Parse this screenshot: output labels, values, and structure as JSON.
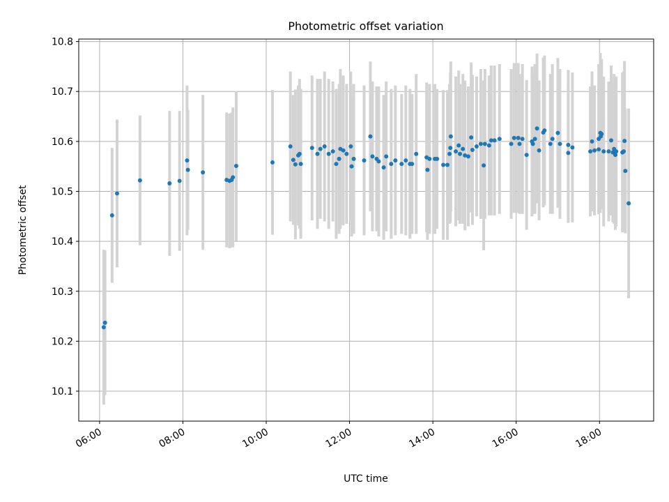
{
  "chart_data": {
    "type": "scatter",
    "title": "Photometric offset variation",
    "xlabel": "UTC time",
    "ylabel": "Photometric offset",
    "grid": true,
    "xlim_hours": [
      5.5,
      19.3
    ],
    "ylim": [
      10.04,
      10.805
    ],
    "x_ticks": [
      {
        "hour": 6,
        "label": "06:00"
      },
      {
        "hour": 8,
        "label": "08:00"
      },
      {
        "hour": 10,
        "label": "10:00"
      },
      {
        "hour": 12,
        "label": "12:00"
      },
      {
        "hour": 14,
        "label": "14:00"
      },
      {
        "hour": 16,
        "label": "16:00"
      },
      {
        "hour": 18,
        "label": "18:00"
      }
    ],
    "y_ticks": [
      {
        "value": 10.1,
        "label": "10.1"
      },
      {
        "value": 10.2,
        "label": "10.2"
      },
      {
        "value": 10.3,
        "label": "10.3"
      },
      {
        "value": 10.4,
        "label": "10.4"
      },
      {
        "value": 10.5,
        "label": "10.5"
      },
      {
        "value": 10.6,
        "label": "10.6"
      },
      {
        "value": 10.7,
        "label": "10.7"
      },
      {
        "value": 10.8,
        "label": "10.8"
      }
    ],
    "colors": {
      "marker": "#1f77b4",
      "errorbar": "#d3d3d3",
      "grid": "#b0b0b0"
    },
    "series": [
      {
        "points": [
          [
            6.1,
            10.228,
            0.155
          ],
          [
            6.13,
            10.237,
            0.145
          ],
          [
            6.3,
            10.452,
            0.135
          ],
          [
            6.42,
            10.496,
            0.148
          ],
          [
            6.97,
            10.522,
            0.13
          ],
          [
            7.68,
            10.516,
            0.145
          ],
          [
            7.92,
            10.521,
            0.14
          ],
          [
            8.1,
            10.562,
            0.15
          ],
          [
            8.12,
            10.543,
            0.12
          ],
          [
            8.48,
            10.538,
            0.155
          ],
          [
            9.05,
            10.523,
            0.135
          ],
          [
            9.12,
            10.521,
            0.135
          ],
          [
            9.17,
            10.523,
            0.135
          ],
          [
            9.2,
            10.528,
            0.14
          ],
          [
            9.28,
            10.551,
            0.15
          ],
          [
            10.15,
            10.558,
            0.145
          ],
          [
            10.58,
            10.59,
            0.15
          ],
          [
            10.65,
            10.563,
            0.13
          ],
          [
            10.7,
            10.554,
            0.15
          ],
          [
            10.77,
            10.572,
            0.14
          ],
          [
            10.8,
            10.575,
            0.15
          ],
          [
            10.83,
            10.555,
            0.15
          ],
          [
            11.1,
            10.587,
            0.145
          ],
          [
            11.23,
            10.575,
            0.15
          ],
          [
            11.3,
            10.585,
            0.14
          ],
          [
            11.4,
            10.59,
            0.15
          ],
          [
            11.5,
            10.575,
            0.15
          ],
          [
            11.6,
            10.58,
            0.14
          ],
          [
            11.68,
            10.555,
            0.15
          ],
          [
            11.75,
            10.565,
            0.15
          ],
          [
            11.78,
            10.585,
            0.16
          ],
          [
            11.85,
            10.582,
            0.15
          ],
          [
            11.93,
            10.575,
            0.14
          ],
          [
            12.03,
            10.59,
            0.15
          ],
          [
            12.05,
            10.55,
            0.14
          ],
          [
            12.1,
            10.565,
            0.15
          ],
          [
            12.35,
            10.562,
            0.15
          ],
          [
            12.5,
            10.61,
            0.15
          ],
          [
            12.55,
            10.57,
            0.15
          ],
          [
            12.65,
            10.565,
            0.145
          ],
          [
            12.7,
            10.56,
            0.15
          ],
          [
            12.82,
            10.548,
            0.145
          ],
          [
            12.88,
            10.57,
            0.15
          ],
          [
            13.0,
            10.555,
            0.15
          ],
          [
            13.1,
            10.562,
            0.15
          ],
          [
            13.25,
            10.555,
            0.14
          ],
          [
            13.35,
            10.562,
            0.15
          ],
          [
            13.45,
            10.555,
            0.15
          ],
          [
            13.5,
            10.555,
            0.14
          ],
          [
            13.6,
            10.575,
            0.16
          ],
          [
            13.85,
            10.568,
            0.15
          ],
          [
            13.87,
            10.543,
            0.14
          ],
          [
            13.92,
            10.565,
            0.15
          ],
          [
            14.05,
            10.565,
            0.15
          ],
          [
            14.1,
            10.565,
            0.14
          ],
          [
            14.25,
            10.553,
            0.15
          ],
          [
            14.35,
            10.553,
            0.15
          ],
          [
            14.4,
            10.575,
            0.14
          ],
          [
            14.42,
            10.587,
            0.15
          ],
          [
            14.43,
            10.61,
            0.15
          ],
          [
            14.55,
            10.58,
            0.15
          ],
          [
            14.62,
            10.592,
            0.15
          ],
          [
            14.65,
            10.575,
            0.14
          ],
          [
            14.72,
            10.585,
            0.15
          ],
          [
            14.77,
            10.572,
            0.15
          ],
          [
            14.85,
            10.57,
            0.14
          ],
          [
            14.92,
            10.608,
            0.15
          ],
          [
            14.95,
            10.583,
            0.15
          ],
          [
            15.05,
            10.59,
            0.14
          ],
          [
            15.15,
            10.595,
            0.15
          ],
          [
            15.22,
            10.552,
            0.17
          ],
          [
            15.25,
            10.595,
            0.15
          ],
          [
            15.35,
            10.592,
            0.14
          ],
          [
            15.4,
            10.602,
            0.15
          ],
          [
            15.48,
            10.602,
            0.15
          ],
          [
            15.6,
            10.605,
            0.15
          ],
          [
            15.88,
            10.595,
            0.15
          ],
          [
            15.95,
            10.607,
            0.15
          ],
          [
            16.05,
            10.607,
            0.15
          ],
          [
            16.08,
            10.595,
            0.14
          ],
          [
            16.15,
            10.605,
            0.15
          ],
          [
            16.25,
            10.573,
            0.15
          ],
          [
            16.38,
            10.6,
            0.15
          ],
          [
            16.4,
            10.595,
            0.14
          ],
          [
            16.45,
            10.605,
            0.15
          ],
          [
            16.5,
            10.626,
            0.15
          ],
          [
            16.55,
            10.582,
            0.14
          ],
          [
            16.65,
            10.618,
            0.15
          ],
          [
            16.68,
            10.622,
            0.15
          ],
          [
            16.82,
            10.595,
            0.14
          ],
          [
            16.87,
            10.605,
            0.15
          ],
          [
            17.0,
            10.617,
            0.15
          ],
          [
            17.05,
            10.595,
            0.15
          ],
          [
            17.25,
            10.593,
            0.15
          ],
          [
            17.25,
            10.577,
            0.14
          ],
          [
            17.35,
            10.588,
            0.15
          ],
          [
            17.78,
            10.58,
            0.13
          ],
          [
            17.82,
            10.6,
            0.14
          ],
          [
            17.88,
            10.582,
            0.13
          ],
          [
            17.98,
            10.584,
            0.13
          ],
          [
            17.98,
            10.605,
            0.15
          ],
          [
            18.02,
            10.617,
            0.16
          ],
          [
            18.03,
            10.61,
            0.14
          ],
          [
            18.05,
            10.615,
            0.15
          ],
          [
            18.1,
            10.58,
            0.15
          ],
          [
            18.22,
            10.58,
            0.14
          ],
          [
            18.28,
            10.602,
            0.15
          ],
          [
            18.32,
            10.578,
            0.14
          ],
          [
            18.35,
            10.585,
            0.15
          ],
          [
            18.38,
            10.573,
            0.15
          ],
          [
            18.4,
            10.58,
            0.15
          ],
          [
            18.55,
            10.578,
            0.16
          ],
          [
            18.58,
            10.58,
            0.16
          ],
          [
            18.6,
            10.601,
            0.16
          ],
          [
            18.62,
            10.541,
            0.125
          ],
          [
            18.7,
            10.476,
            0.19
          ]
        ]
      }
    ]
  }
}
